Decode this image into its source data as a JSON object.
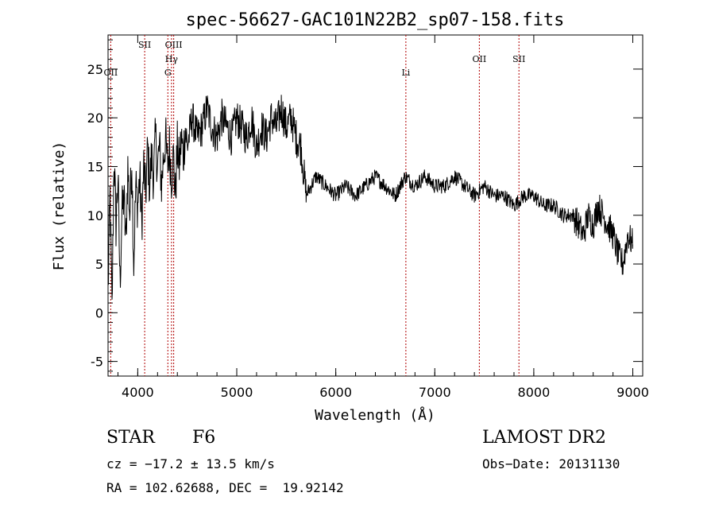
{
  "chart_data": {
    "type": "line",
    "title": "spec-56627-GAC101N22B2_sp07-158.fits",
    "xlabel": "Wavelength (Å)",
    "ylabel": "Flux (relative)",
    "xlim": [
      3700,
      9100
    ],
    "ylim": [
      -6.5,
      28.5
    ],
    "xticks": [
      4000,
      5000,
      6000,
      7000,
      8000,
      9000
    ],
    "yticks": [
      -5,
      0,
      5,
      10,
      15,
      20,
      25
    ],
    "grid": false,
    "line_color": "#000000",
    "marker_color": "#b00000",
    "series": [
      {
        "x": [
          3700,
          3720,
          3740,
          3760,
          3780,
          3800,
          3820,
          3840,
          3860,
          3880,
          3900,
          3920,
          3940,
          3960,
          3980,
          4000,
          4020,
          4040,
          4060,
          4080,
          4100,
          4120,
          4140,
          4160,
          4180,
          4200,
          4220,
          4240,
          4260,
          4280,
          4300,
          4320,
          4340,
          4360,
          4380,
          4400,
          4420,
          4440,
          4460,
          4480,
          4500,
          4550,
          4600,
          4650,
          4700,
          4750,
          4800,
          4850,
          4900,
          4950,
          5000,
          5050,
          5100,
          5150,
          5200,
          5250,
          5300,
          5350,
          5400,
          5450,
          5500,
          5550,
          5600,
          5650,
          5700,
          5750,
          5800,
          5900,
          6000,
          6100,
          6200,
          6300,
          6400,
          6500,
          6600,
          6700,
          6800,
          6900,
          7000,
          7100,
          7200,
          7300,
          7400,
          7500,
          7600,
          7700,
          7800,
          7900,
          8000,
          8100,
          8200,
          8300,
          8400,
          8450,
          8500,
          8550,
          8600,
          8650,
          8700,
          8750,
          8800,
          8850,
          8900,
          8950,
          9000
        ],
        "y": [
          2,
          12,
          0,
          16,
          9,
          14,
          3,
          10,
          12,
          7,
          15,
          10,
          16,
          5,
          13,
          11,
          14,
          9,
          15,
          12,
          17,
          13,
          16,
          14,
          18,
          15,
          17,
          13,
          16,
          18,
          15,
          17,
          14,
          16,
          12,
          17,
          15,
          18,
          16,
          19,
          17,
          20,
          18,
          19,
          21,
          19,
          18,
          20,
          19,
          18,
          20,
          19,
          18,
          20,
          17,
          19,
          18,
          20,
          19,
          21,
          19,
          20,
          18,
          17,
          12,
          13,
          14,
          13,
          12,
          13,
          12,
          13,
          14,
          13,
          12,
          14,
          13,
          14,
          13,
          13,
          14,
          13,
          12,
          13,
          12,
          12,
          11,
          12,
          12,
          11,
          11,
          10,
          10,
          9,
          8,
          10,
          9,
          11,
          10,
          9,
          8,
          6,
          5,
          8,
          7
        ]
      }
    ],
    "line_markers": [
      {
        "label": "OII",
        "x": 3727
      },
      {
        "label": "SII",
        "x": 4070
      },
      {
        "label": "G",
        "x": 4304
      },
      {
        "label": "Hγ",
        "x": 4341
      },
      {
        "label": "OIII",
        "x": 4363
      },
      {
        "label": "Li",
        "x": 6708
      },
      {
        "label": "OII",
        "x": 7450
      },
      {
        "label": "SII",
        "x": 7850
      }
    ]
  },
  "info": {
    "class_label": "STAR",
    "subclass": "F6",
    "survey": "LAMOST DR2",
    "cz": "cz = −17.2 ± 13.5 km/s",
    "obs_date": "Obs−Date: 20131130",
    "coords": "RA = 102.62688, DEC =  19.92142"
  }
}
